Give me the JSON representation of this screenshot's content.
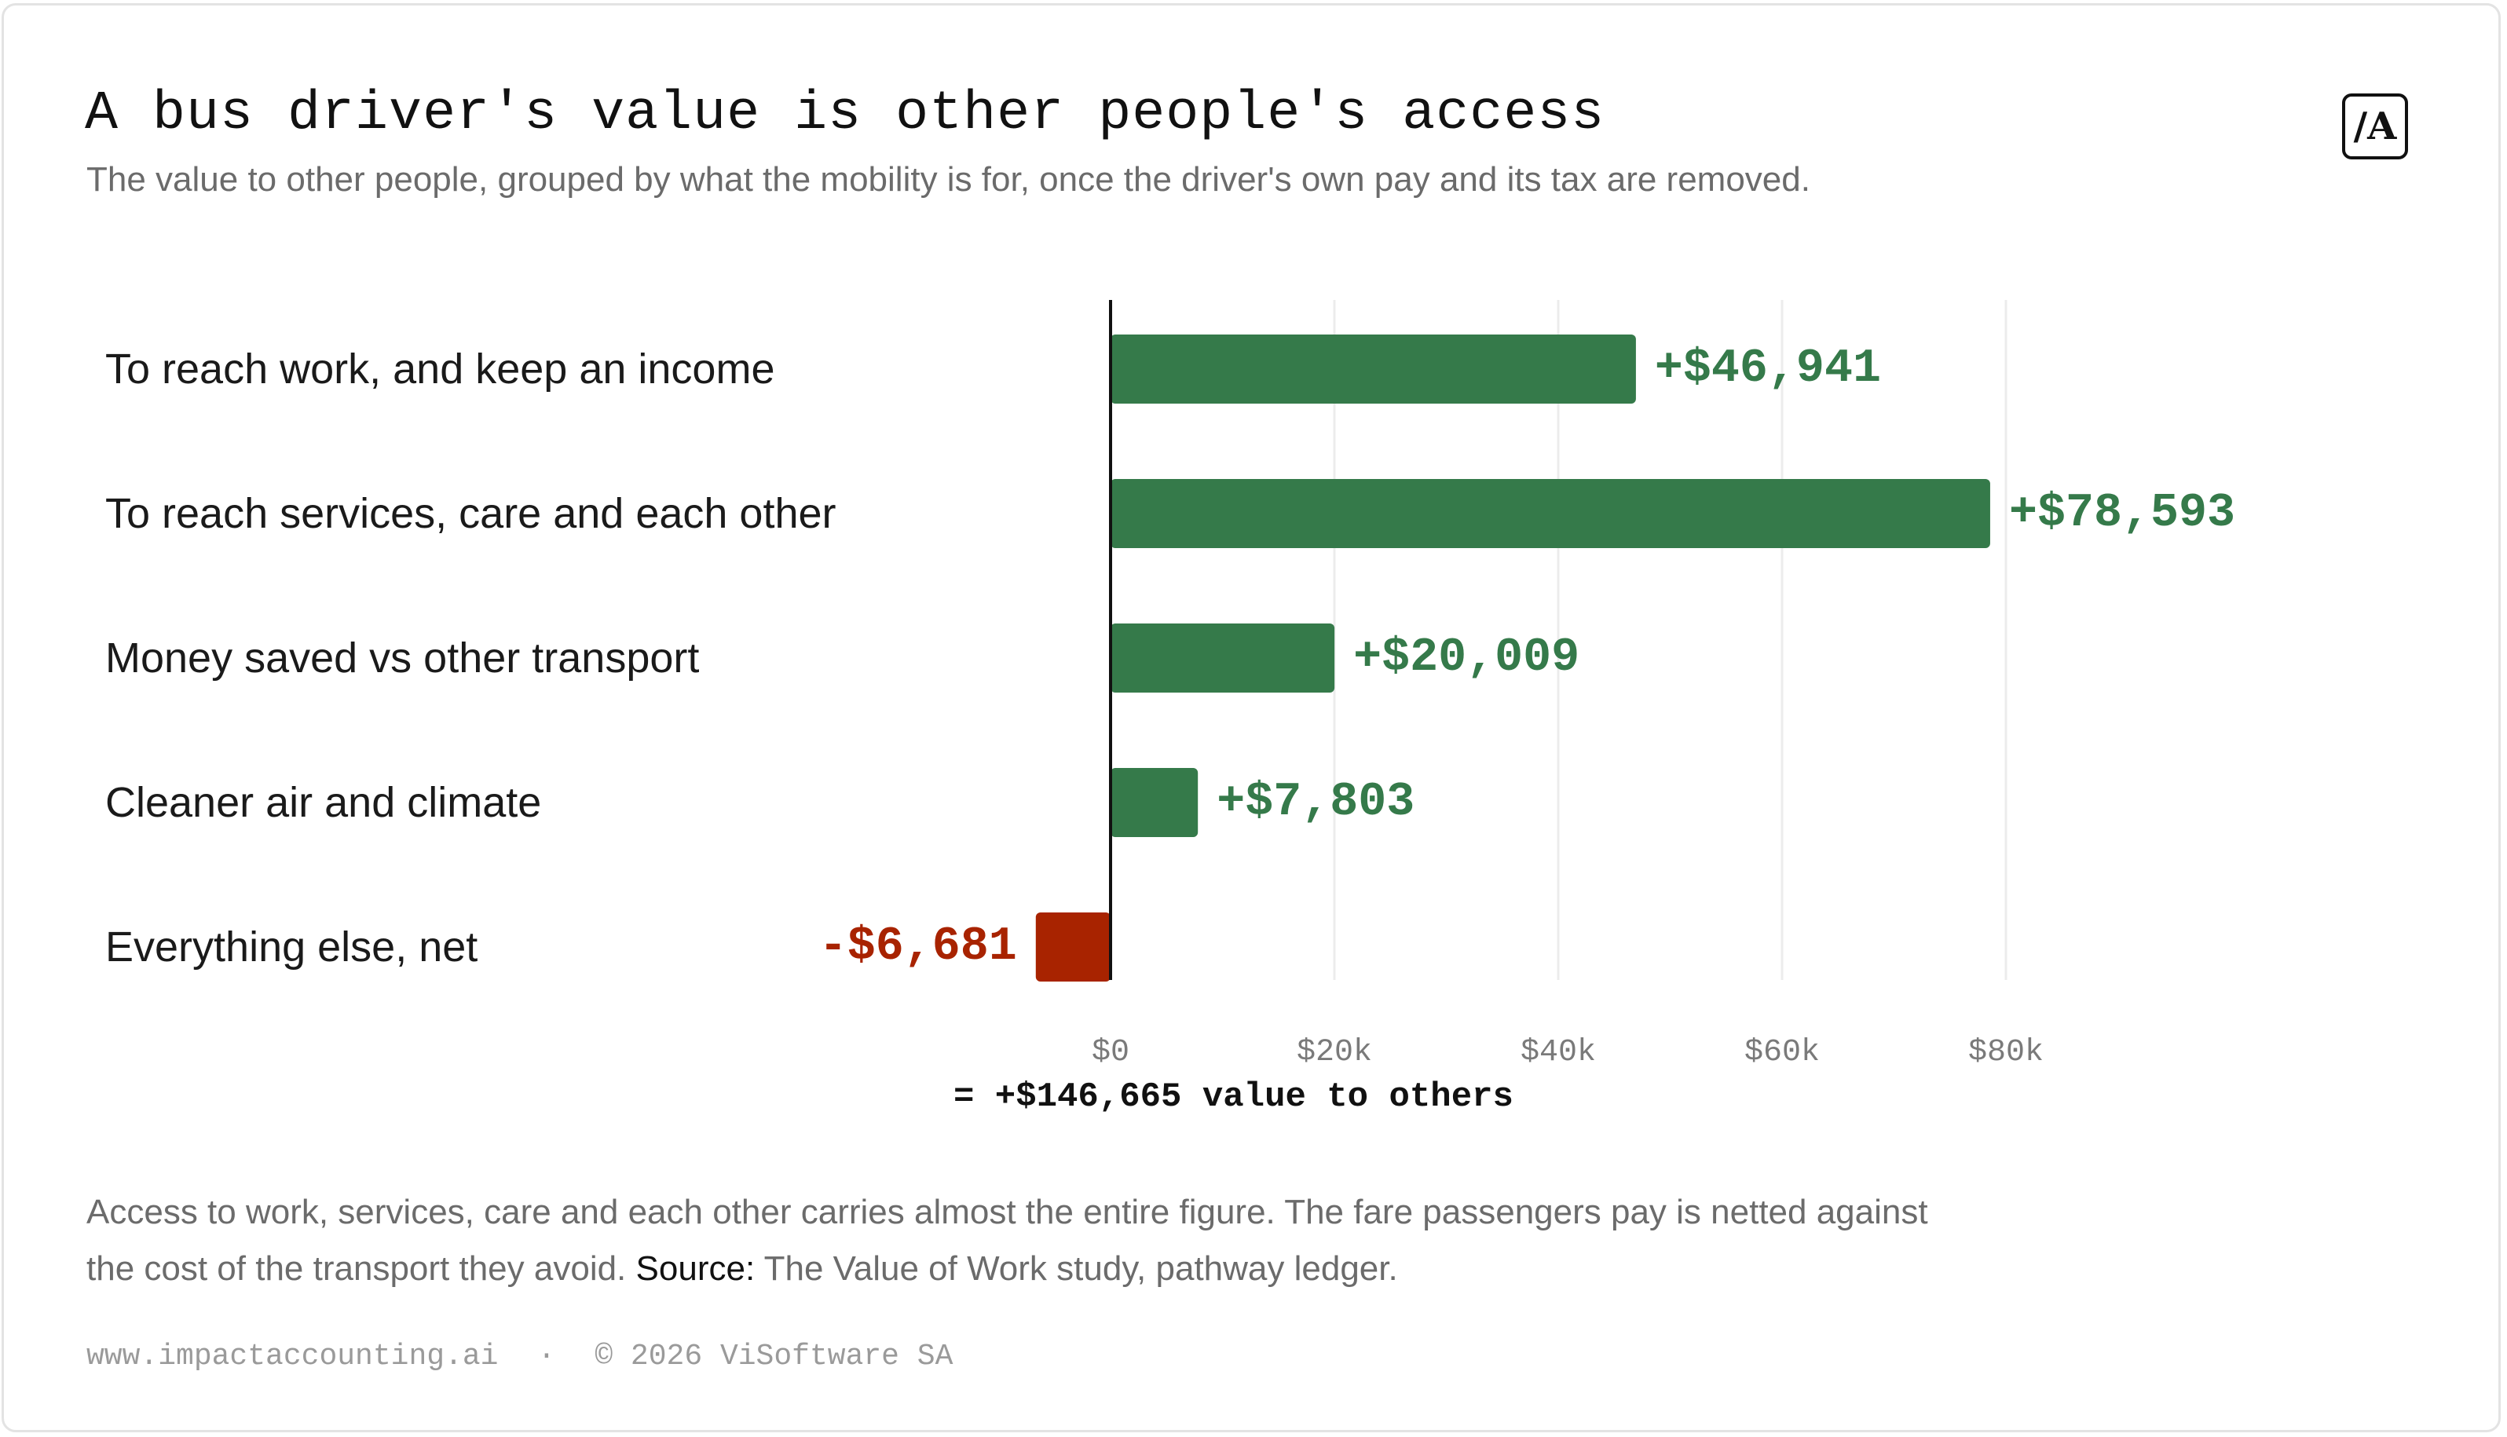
{
  "header": {
    "title": "A bus driver's value is other people's access",
    "subtitle": "The value to other people, grouped by what the mobility is for, once the driver's own pay and its tax are removed.",
    "logo_text": "/A"
  },
  "chart_data": {
    "type": "bar",
    "orientation": "horizontal",
    "categories": [
      "To reach work, and keep an income",
      "To reach services, care and each other",
      "Money saved vs other transport",
      "Cleaner air and climate",
      "Everything else, net"
    ],
    "values": [
      46941,
      78593,
      20009,
      7803,
      -6681
    ],
    "value_labels": [
      "+$46,941",
      "+$78,593",
      "+$20,009",
      "+$7,803",
      "-$6,681"
    ],
    "x_ticks": [
      0,
      20000,
      40000,
      60000,
      80000
    ],
    "x_tick_labels": [
      "$0",
      "$20k",
      "$40k",
      "$60k",
      "$80k"
    ],
    "xlim": [
      -6681,
      90000
    ],
    "grid": true,
    "total_label": "= +$146,665 value to others",
    "colors": {
      "positive": "#357a4a",
      "negative": "#a82300",
      "grid": "#ececec",
      "axis": "#111111"
    }
  },
  "note": {
    "text": "Access to work, services, care and each other carries almost the entire figure. The fare passengers pay is netted against the cost of the transport they avoid.",
    "source_label": "Source:",
    "source_text": "The Value of Work study, pathway ledger."
  },
  "footer": {
    "website": "www.impactaccounting.ai",
    "separator": "·",
    "copyright": "© 2026 ViSoftware SA"
  }
}
